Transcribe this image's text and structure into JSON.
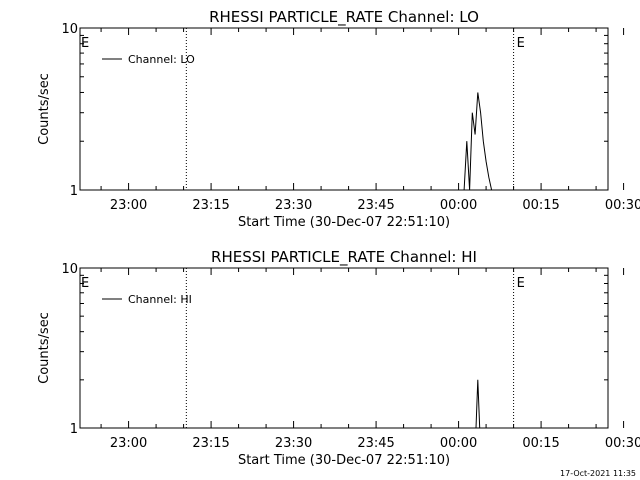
{
  "timestamp": "17-Oct-2021 11:35",
  "chart_data": [
    {
      "type": "line",
      "title": "RHESSI PARTICLE_RATE Channel: LO",
      "xlabel": "Start Time (30-Dec-07 22:51:10)",
      "ylabel": "Counts/sec",
      "x_start": "22:51:10",
      "xlim_seconds": [
        0,
        5760
      ],
      "x_tick_labels": [
        "23:00",
        "23:15",
        "23:30",
        "23:45",
        "00:00",
        "00:15",
        "00:30"
      ],
      "y_scale": "log",
      "ylim": [
        1,
        10
      ],
      "y_tick_labels": [
        "1",
        "10"
      ],
      "legend": {
        "entries": [
          "Channel: LO"
        ],
        "placement": "top-left"
      },
      "event_markers": [
        {
          "time": "23:10:30",
          "label": ""
        },
        {
          "time": "00:10:00",
          "label": "E"
        },
        {
          "time": "00:27:10",
          "label": ""
        }
      ],
      "edge_markers": [
        {
          "side": "left",
          "label": "E"
        }
      ],
      "series": [
        {
          "name": "Channel: LO",
          "x": [
            "00:01:00",
            "00:01:30",
            "00:02:00",
            "00:02:30",
            "00:03:00",
            "00:03:30",
            "00:04:00",
            "00:04:30",
            "00:05:00",
            "00:05:30",
            "00:06:00"
          ],
          "y": [
            1,
            2.0,
            1,
            3.0,
            2.2,
            4.0,
            3.0,
            2.0,
            1.5,
            1.2,
            1
          ]
        }
      ]
    },
    {
      "type": "line",
      "title": "RHESSI PARTICLE_RATE Channel: HI",
      "xlabel": "Start Time (30-Dec-07 22:51:10)",
      "ylabel": "Counts/sec",
      "x_start": "22:51:10",
      "xlim_seconds": [
        0,
        5760
      ],
      "x_tick_labels": [
        "23:00",
        "23:15",
        "23:30",
        "23:45",
        "00:00",
        "00:15",
        "00:30"
      ],
      "y_scale": "log",
      "ylim": [
        1,
        10
      ],
      "y_tick_labels": [
        "1",
        "10"
      ],
      "legend": {
        "entries": [
          "Channel: HI"
        ],
        "placement": "top-left"
      },
      "event_markers": [
        {
          "time": "23:10:30",
          "label": ""
        },
        {
          "time": "00:10:00",
          "label": "E"
        },
        {
          "time": "00:27:10",
          "label": ""
        }
      ],
      "edge_markers": [
        {
          "side": "left",
          "label": "E"
        }
      ],
      "series": [
        {
          "name": "Channel: HI",
          "x": [
            "00:03:10",
            "00:03:30",
            "00:03:50"
          ],
          "y": [
            1,
            2.0,
            1
          ]
        }
      ]
    }
  ]
}
